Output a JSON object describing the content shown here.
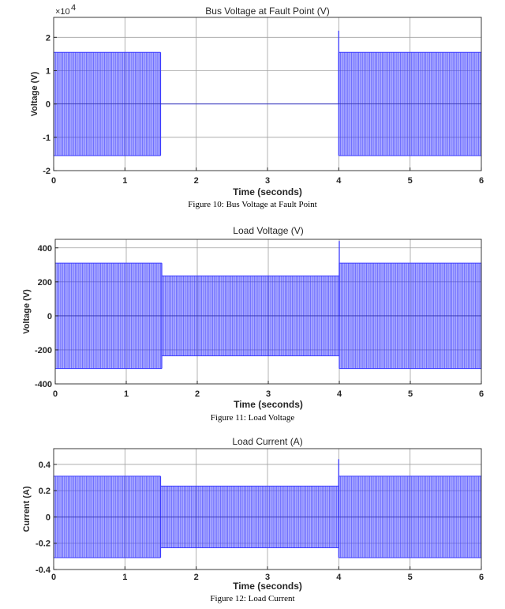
{
  "colors": {
    "signal": "#3b3bff",
    "grid": "#a0a0a0",
    "axis": "#262626"
  },
  "chart_data": [
    {
      "type": "line",
      "title": "Bus Voltage at Fault Point (V)",
      "xlabel": "Time (seconds)",
      "ylabel": "Voltage (V)",
      "caption": "Figure 10: Bus Voltage at Fault Point",
      "multiplier": "×10",
      "multiplier_exp": "4",
      "xlim": [
        0,
        6
      ],
      "ylim": [
        -2,
        2.6
      ],
      "xticks": [
        0,
        1,
        2,
        3,
        4,
        5,
        6
      ],
      "yticks": [
        -2,
        -1,
        0,
        1,
        2
      ],
      "ytick_labels": [
        "-2",
        "-1",
        "0",
        "1",
        "2"
      ],
      "grid": true,
      "segments": [
        {
          "t_start": 0,
          "t_end": 1.5,
          "amplitude": 1.55
        },
        {
          "t_start": 1.5,
          "t_end": 4.0,
          "amplitude": 0.0
        },
        {
          "t_start": 4.0,
          "t_end": 6.0,
          "amplitude": 1.55
        }
      ],
      "spike": {
        "t": 4.0,
        "value": 2.2
      }
    },
    {
      "type": "line",
      "title": "Load Voltage (V)",
      "xlabel": "Time (seconds)",
      "ylabel": "Voltage (V)",
      "caption": "Figure 11: Load Voltage",
      "xlim": [
        0,
        6
      ],
      "ylim": [
        -400,
        450
      ],
      "xticks": [
        0,
        1,
        2,
        3,
        4,
        5,
        6
      ],
      "yticks": [
        -400,
        -200,
        0,
        200,
        400
      ],
      "ytick_labels": [
        "-400",
        "-200",
        "0",
        "200",
        "400"
      ],
      "grid": true,
      "segments": [
        {
          "t_start": 0,
          "t_end": 1.5,
          "amplitude": 310
        },
        {
          "t_start": 1.5,
          "t_end": 4.0,
          "amplitude": 235
        },
        {
          "t_start": 4.0,
          "t_end": 6.0,
          "amplitude": 310
        }
      ],
      "spike": {
        "t": 4.0,
        "value": 440
      }
    },
    {
      "type": "line",
      "title": "Load Current (A)",
      "xlabel": "Time (seconds)",
      "ylabel": "Current (A)",
      "caption": "Figure 12: Load Current",
      "xlim": [
        0,
        6
      ],
      "ylim": [
        -0.4,
        0.52
      ],
      "xticks": [
        0,
        1,
        2,
        3,
        4,
        5,
        6
      ],
      "yticks": [
        -0.4,
        -0.2,
        0,
        0.2,
        0.4
      ],
      "ytick_labels": [
        "-0.4",
        "-0.2",
        "0",
        "0.2",
        "0.4"
      ],
      "grid": true,
      "segments": [
        {
          "t_start": 0,
          "t_end": 1.5,
          "amplitude": 0.31
        },
        {
          "t_start": 1.5,
          "t_end": 4.0,
          "amplitude": 0.235
        },
        {
          "t_start": 4.0,
          "t_end": 6.0,
          "amplitude": 0.31
        }
      ],
      "spike": {
        "t": 4.0,
        "value": 0.44
      }
    }
  ]
}
